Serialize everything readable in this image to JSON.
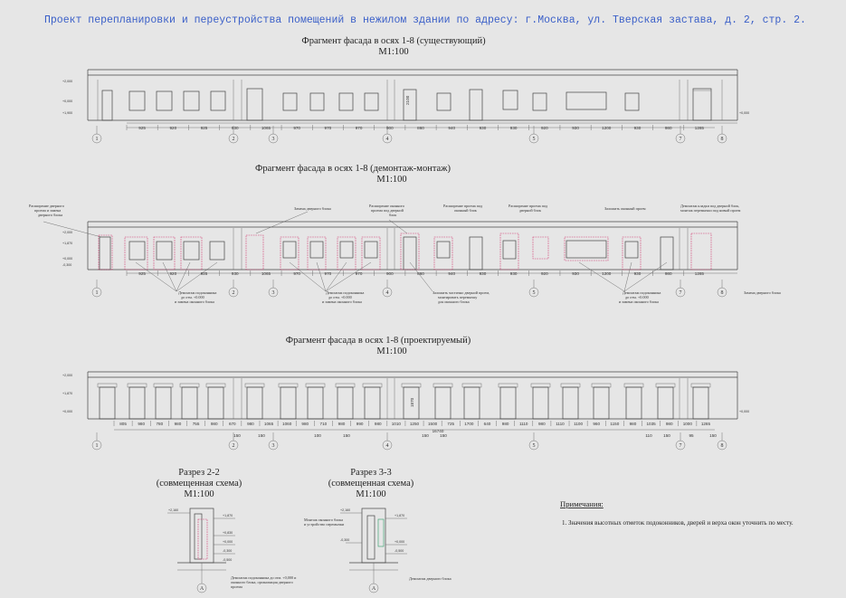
{
  "header": "Проект перепланировки и переустройства помещений в нежилом здании по адресу: г.Москва, ул. Тверская застава, д. 2, стр. 2.",
  "facade1": {
    "title": "Фрагмент фасада в осях 1-8 (существующий)",
    "scale": "М1:100",
    "dims": [
      "925",
      "920",
      "925",
      "930",
      "1065",
      "970",
      "970",
      "970",
      "900",
      "860",
      "940",
      "930",
      "930",
      "920",
      "930",
      "1200",
      "930",
      "980",
      "1265"
    ],
    "levels": [
      "+2,000",
      "+0,000",
      "+1,900",
      "-0,300"
    ],
    "right_level": "+0,000",
    "height_label": "2100"
  },
  "facade2": {
    "title": "Фрагмент фасада в осях 1-8 (демонтаж-монтаж)",
    "scale": "М1:100",
    "dims": [
      "925",
      "920",
      "925",
      "930",
      "1065",
      "970",
      "970",
      "970",
      "900",
      "860",
      "940",
      "930",
      "930",
      "920",
      "930",
      "1200",
      "930",
      "980",
      "1265"
    ],
    "levels": [
      "+2,000",
      "+1,870",
      "+0,000",
      "-0,300"
    ],
    "notes": {
      "n1": [
        "Расширение дверного",
        "проема и замена",
        "дверного блока"
      ],
      "n2": [
        "Замена дверного блока"
      ],
      "n3": [
        "Расширение оконного",
        "проема под дверной",
        "блок"
      ],
      "n4": [
        "Расширение проема под",
        "оконный блок"
      ],
      "n5": [
        "Расширение проема под",
        "дверной блок"
      ],
      "n6": [
        "Заложить оконный проем"
      ],
      "n7": [
        "Демонтаж кладки под дверной блок,",
        "монтаж перемычки под новый проем"
      ],
      "b1": [
        "Демонтаж подоконника",
        "до отм. +0.000",
        "и замена оконного блока"
      ],
      "b2": [
        "Демонтаж подоконника",
        "до отм. +0.000",
        "и замена оконного блока"
      ],
      "b3": [
        "Заложить частично дверной проем,",
        "монтировать перемычку",
        "для оконного блока"
      ],
      "b4": [
        "Демонтаж подоконника",
        "до отм. +0.000",
        "и замена оконного блока"
      ],
      "b5": [
        "Замена дверного блока"
      ]
    }
  },
  "facade3": {
    "title": "Фрагмент фасада в осях 1-8 (проектируемый)",
    "scale": "М1:100",
    "dims": [
      "805",
      "980",
      "780",
      "980",
      "755",
      "980",
      "670",
      "980",
      "1065",
      "1060",
      "980",
      "710",
      "980",
      "990",
      "980",
      "1010",
      "1250",
      "1500",
      "725",
      "1700",
      "640",
      "980",
      "1110",
      "980",
      "1110",
      "1100",
      "960",
      "1150",
      "980",
      "1035",
      "980",
      "1000",
      "1265"
    ],
    "total": "16740",
    "sub_dims": [
      "150",
      "150",
      "100",
      "150",
      "150",
      "150",
      "110",
      "150",
      "95",
      "150"
    ],
    "levels": [
      "+2,000",
      "+1,870",
      "+0,000",
      "-0,300"
    ],
    "height_label": "1870"
  },
  "axes": [
    "1",
    "2",
    "3",
    "4",
    "5",
    "7",
    "8"
  ],
  "section22": {
    "title": "Разрез 2-2",
    "subtitle": "(совмещенная схема)",
    "scale": "М1:100",
    "axis": "А",
    "levels": [
      "+2,160",
      "+1,870",
      "+0,830",
      "+0,000",
      "-0,300",
      "-0,500"
    ],
    "note": [
      "Демонтаж подоконника до отм. +0,000 и",
      "оконного блока, организация дверного",
      "проема"
    ]
  },
  "section33": {
    "title": "Разрез 3-3",
    "subtitle": "(совмещенная схема)",
    "scale": "М1:100",
    "axis": "А",
    "levels": [
      "+2,160",
      "+1,870",
      "+0,000",
      "-0,300",
      "-0,500"
    ],
    "note_left": [
      "Монтаж оконного блока",
      "и устройство перемычки"
    ],
    "note_bottom": [
      "Демонтаж дверного блока"
    ]
  },
  "notes": {
    "title": "Примечания:",
    "items": [
      "1.  Значения высотных отметок подоконников, дверей и верха окон уточнить по месту."
    ]
  }
}
